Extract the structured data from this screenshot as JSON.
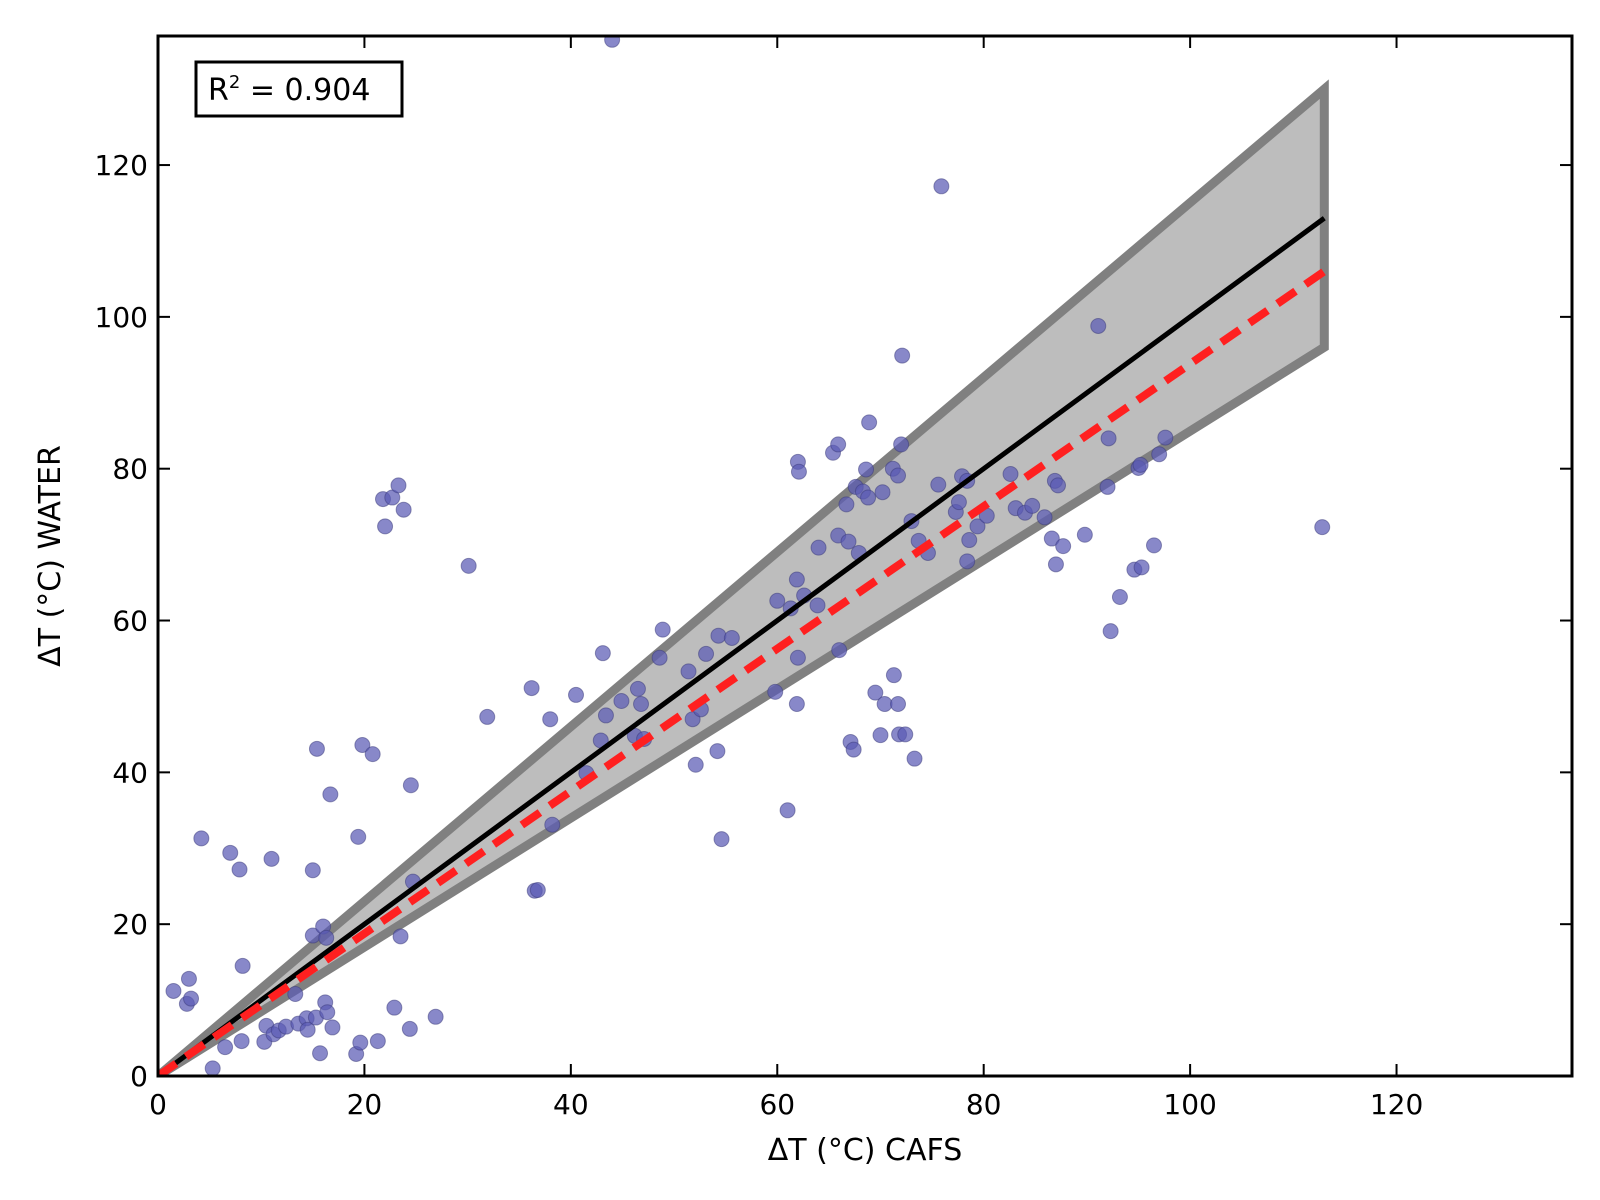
{
  "chart_data": {
    "type": "scatter",
    "xlabel": "ΔT (°C) CAFS",
    "ylabel": "ΔT (°C) WATER",
    "xlim": [
      0,
      137
    ],
    "ylim": [
      0,
      137
    ],
    "xticks": [
      0,
      20,
      40,
      60,
      80,
      100,
      120
    ],
    "yticks": [
      0,
      20,
      40,
      60,
      80,
      100,
      120
    ],
    "annotation": {
      "text_prefix": "R",
      "superscript": "2",
      "text_suffix": " = 0.904"
    },
    "colors": {
      "points": "#5a5ab4",
      "fit_line": "#000000",
      "identity_dashed": "#ff2020",
      "band_fill": "#bdbdbd",
      "band_edge": "#808080"
    },
    "fit_line": {
      "x": [
        0,
        113
      ],
      "y": [
        0,
        113
      ]
    },
    "dashed_line": {
      "x": [
        0,
        113
      ],
      "y": [
        0,
        106
      ]
    },
    "confidence_band": {
      "x_end": 113,
      "upper_end": 130,
      "lower_end": 96
    },
    "points": [
      [
        1.5,
        11.2
      ],
      [
        2.8,
        9.5
      ],
      [
        3,
        12.8
      ],
      [
        3.2,
        10.2
      ],
      [
        4.2,
        31.3
      ],
      [
        5.3,
        1
      ],
      [
        6.5,
        3.8
      ],
      [
        7,
        29.4
      ],
      [
        7.9,
        27.2
      ],
      [
        8.1,
        4.6
      ],
      [
        8.2,
        14.5
      ],
      [
        10.3,
        4.5
      ],
      [
        10.5,
        6.6
      ],
      [
        11,
        28.6
      ],
      [
        11.2,
        5.5
      ],
      [
        11.7,
        6
      ],
      [
        12.4,
        6.5
      ],
      [
        13.3,
        10.8
      ],
      [
        13.6,
        6.9
      ],
      [
        14.4,
        7.6
      ],
      [
        14.5,
        6.1
      ],
      [
        15,
        18.5
      ],
      [
        15,
        27.1
      ],
      [
        15.3,
        7.7
      ],
      [
        15.4,
        43.1
      ],
      [
        15.7,
        3
      ],
      [
        16,
        19.7
      ],
      [
        16.2,
        9.7
      ],
      [
        16.3,
        18.2
      ],
      [
        16.4,
        8.4
      ],
      [
        16.7,
        37.1
      ],
      [
        16.9,
        6.4
      ],
      [
        19.2,
        2.9
      ],
      [
        19.4,
        31.5
      ],
      [
        19.6,
        4.4
      ],
      [
        19.8,
        43.6
      ],
      [
        20.8,
        42.4
      ],
      [
        21.3,
        4.6
      ],
      [
        21.8,
        76
      ],
      [
        22,
        72.4
      ],
      [
        22.7,
        76.2
      ],
      [
        22.9,
        9
      ],
      [
        23.3,
        77.8
      ],
      [
        23.5,
        18.4
      ],
      [
        23.8,
        74.6
      ],
      [
        24.4,
        6.2
      ],
      [
        24.5,
        38.3
      ],
      [
        24.7,
        25.6
      ],
      [
        26.9,
        7.8
      ],
      [
        30.1,
        67.2
      ],
      [
        31.9,
        47.3
      ],
      [
        36.2,
        51.1
      ],
      [
        36.5,
        24.4
      ],
      [
        36.8,
        24.5
      ],
      [
        38,
        47
      ],
      [
        38.2,
        33.1
      ],
      [
        40.5,
        50.2
      ],
      [
        41.5,
        39.9
      ],
      [
        42.9,
        44.2
      ],
      [
        43.1,
        55.7
      ],
      [
        43.4,
        47.5
      ],
      [
        44,
        136.5
      ],
      [
        44.9,
        49.4
      ],
      [
        46.2,
        44.8
      ],
      [
        46.5,
        51
      ],
      [
        46.8,
        49
      ],
      [
        47.1,
        44.4
      ],
      [
        48.6,
        55.1
      ],
      [
        48.9,
        58.8
      ],
      [
        51.4,
        53.3
      ],
      [
        51.8,
        47
      ],
      [
        52.1,
        41
      ],
      [
        52.6,
        48.3
      ],
      [
        53.1,
        55.6
      ],
      [
        54.3,
        58
      ],
      [
        54.6,
        31.2
      ],
      [
        55.6,
        57.7
      ],
      [
        54.2,
        42.8
      ],
      [
        59.8,
        50.6
      ],
      [
        60,
        62.6
      ],
      [
        61,
        35
      ],
      [
        61.3,
        61.6
      ],
      [
        61.9,
        49
      ],
      [
        61.9,
        65.4
      ],
      [
        62,
        80.9
      ],
      [
        62.1,
        79.6
      ],
      [
        62,
        55.1
      ],
      [
        62.6,
        63.3
      ],
      [
        63.9,
        62
      ],
      [
        64,
        69.6
      ],
      [
        65.4,
        82.1
      ],
      [
        65.9,
        83.2
      ],
      [
        65.9,
        71.2
      ],
      [
        66,
        56.1
      ],
      [
        66.7,
        75.3
      ],
      [
        66.9,
        70.4
      ],
      [
        67.1,
        44
      ],
      [
        67.4,
        43
      ],
      [
        67.6,
        77.6
      ],
      [
        67.9,
        68.9
      ],
      [
        68.3,
        77
      ],
      [
        68.6,
        79.9
      ],
      [
        68.9,
        86.1
      ],
      [
        68.8,
        76.2
      ],
      [
        69.5,
        50.5
      ],
      [
        70,
        44.9
      ],
      [
        70.2,
        76.9
      ],
      [
        70.4,
        49
      ],
      [
        71.2,
        80
      ],
      [
        71.3,
        52.8
      ],
      [
        71.7,
        79.1
      ],
      [
        71.7,
        49
      ],
      [
        71.8,
        45
      ],
      [
        72,
        83.2
      ],
      [
        72.1,
        94.9
      ],
      [
        72.4,
        45
      ],
      [
        73,
        73.1
      ],
      [
        73.3,
        41.8
      ],
      [
        73.7,
        70.5
      ],
      [
        74.6,
        68.9
      ],
      [
        75.6,
        77.9
      ],
      [
        75.9,
        117.2
      ],
      [
        77.3,
        74.3
      ],
      [
        77.6,
        75.6
      ],
      [
        77.9,
        79
      ],
      [
        78.4,
        67.8
      ],
      [
        78.6,
        70.6
      ],
      [
        78.4,
        78.4
      ],
      [
        79.4,
        72.4
      ],
      [
        80.3,
        73.8
      ],
      [
        82.6,
        79.3
      ],
      [
        83.1,
        74.8
      ],
      [
        84,
        74.2
      ],
      [
        84.7,
        75.1
      ],
      [
        85.9,
        73.6
      ],
      [
        86.6,
        70.8
      ],
      [
        86.9,
        78.4
      ],
      [
        87,
        67.4
      ],
      [
        87.2,
        77.8
      ],
      [
        87.7,
        69.8
      ],
      [
        89.8,
        71.3
      ],
      [
        91.1,
        98.8
      ],
      [
        92,
        77.6
      ],
      [
        92.1,
        84
      ],
      [
        92.3,
        58.6
      ],
      [
        93.2,
        63.1
      ],
      [
        94.6,
        66.7
      ],
      [
        95,
        80.1
      ],
      [
        95.2,
        80.5
      ],
      [
        95.3,
        67
      ],
      [
        96.5,
        69.9
      ],
      [
        97,
        81.9
      ],
      [
        97.6,
        84.1
      ],
      [
        112.8,
        72.3
      ]
    ]
  }
}
